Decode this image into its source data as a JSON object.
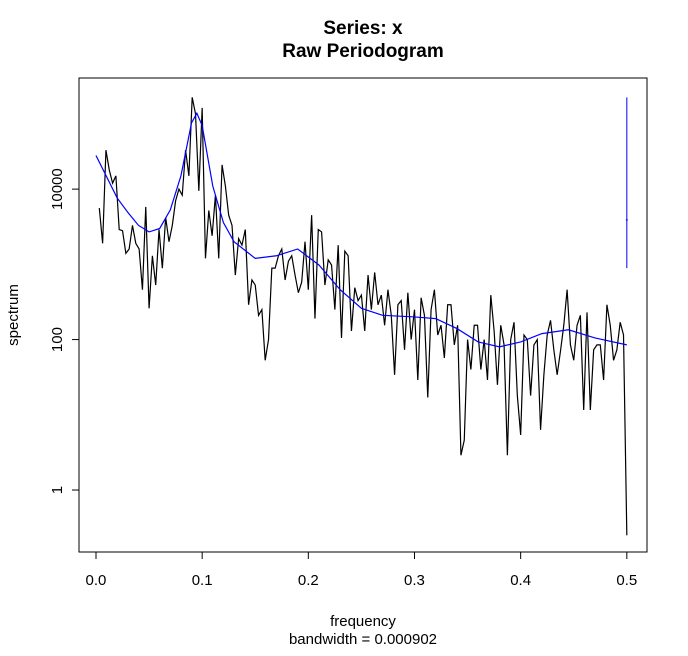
{
  "chart_data": {
    "type": "line",
    "title": "Series: x",
    "subtitle": "Raw Periodogram",
    "x_label": "frequency",
    "x_sublabel": "bandwidth = 0.000902",
    "y_label": "spectrum",
    "log_y": true,
    "grid": false,
    "xlim": [
      -0.016,
      0.519
    ],
    "ylim": [
      0.15,
      300000
    ],
    "xticks": [
      {
        "value": 0,
        "label": "0.0"
      },
      0.1,
      0.2,
      0.3,
      0.4,
      0.5
    ],
    "yticks": [
      1,
      100,
      10000
    ],
    "x": [
      0.003125,
      0.00625,
      0.009375,
      0.0125,
      0.015625,
      0.01875,
      0.021875,
      0.025,
      0.028125,
      0.03125,
      0.034375,
      0.0375,
      0.040625,
      0.04375,
      0.046875,
      0.05,
      0.053125,
      0.05625,
      0.059375,
      0.0625,
      0.065625,
      0.06875,
      0.071875,
      0.075,
      0.078125,
      0.08125,
      0.084375,
      0.0875,
      0.090625,
      0.09375,
      0.096875,
      0.1,
      0.103125,
      0.10625,
      0.109375,
      0.1125,
      0.115625,
      0.11875,
      0.121875,
      0.125,
      0.128125,
      0.13125,
      0.134375,
      0.1375,
      0.140625,
      0.14375,
      0.146875,
      0.15,
      0.153125,
      0.15625,
      0.159375,
      0.1625,
      0.165625,
      0.16875,
      0.171875,
      0.175,
      0.178125,
      0.18125,
      0.184375,
      0.1875,
      0.190625,
      0.19375,
      0.196875,
      0.2,
      0.203125,
      0.20625,
      0.209375,
      0.2125,
      0.215625,
      0.21875,
      0.221875,
      0.225,
      0.228125,
      0.23125,
      0.234375,
      0.2375,
      0.240625,
      0.24375,
      0.246875,
      0.25,
      0.253125,
      0.25625,
      0.259375,
      0.2625,
      0.265625,
      0.26875,
      0.271875,
      0.275,
      0.278125,
      0.28125,
      0.284375,
      0.2875,
      0.290625,
      0.29375,
      0.296875,
      0.3,
      0.303125,
      0.30625,
      0.309375,
      0.3125,
      0.315625,
      0.31875,
      0.321875,
      0.325,
      0.328125,
      0.33125,
      0.334375,
      0.3375,
      0.340625,
      0.34375,
      0.346875,
      0.35,
      0.353125,
      0.35625,
      0.359375,
      0.3625,
      0.365625,
      0.36875,
      0.371875,
      0.375,
      0.378125,
      0.38125,
      0.384375,
      0.3875,
      0.390625,
      0.39375,
      0.396875,
      0.4,
      0.403125,
      0.40625,
      0.409375,
      0.4125,
      0.415625,
      0.41875,
      0.421875,
      0.425,
      0.428125,
      0.43125,
      0.434375,
      0.4375,
      0.440625,
      0.44375,
      0.446875,
      0.45,
      0.453125,
      0.45625,
      0.459375,
      0.4625,
      0.465625,
      0.46875,
      0.471875,
      0.475,
      0.478125,
      0.48125,
      0.484375,
      0.4875,
      0.490625,
      0.49375,
      0.496875,
      0.5
    ],
    "series": [
      {
        "color": "#000000",
        "values": [
          5600,
          1900,
          33000,
          18000,
          12000,
          15000,
          2900,
          2800,
          1400,
          1600,
          3300,
          1900,
          1600,
          460,
          5800,
          260,
          1300,
          530,
          2900,
          890,
          4200,
          2000,
          3300,
          7000,
          10000,
          8300,
          33000,
          15000,
          166000,
          100000,
          9500,
          120000,
          1200,
          5200,
          2400,
          8300,
          1200,
          21000,
          11000,
          4500,
          3300,
          720,
          2200,
          1800,
          2900,
          290,
          620,
          530,
          210,
          250,
          53,
          100,
          890,
          890,
          1300,
          1600,
          620,
          1100,
          1300,
          720,
          420,
          580,
          2000,
          460,
          4500,
          190,
          2900,
          2700,
          530,
          1150,
          980,
          250,
          1800,
          105,
          1500,
          1300,
          130,
          490,
          330,
          390,
          130,
          720,
          250,
          780,
          290,
          390,
          155,
          460,
          210,
          34,
          290,
          330,
          73,
          420,
          100,
          250,
          29,
          360,
          210,
          17,
          250,
          460,
          115,
          155,
          57,
          290,
          290,
          85,
          155,
          2.9,
          4.6,
          100,
          40,
          155,
          155,
          40,
          100,
          29,
          390,
          130,
          25,
          155,
          85,
          2.9,
          100,
          170,
          18,
          5.4,
          115,
          100,
          18,
          85,
          100,
          6.3,
          34,
          115,
          180,
          73,
          34,
          70,
          155,
          460,
          85,
          53,
          155,
          210,
          11.6,
          230,
          11.6,
          73,
          85,
          85,
          29,
          290,
          155,
          53,
          73,
          170,
          115,
          0.25
        ]
      },
      {
        "color": "#0000ff",
        "x": [
          0,
          0.02,
          0.03,
          0.04,
          0.05,
          0.06,
          0.07,
          0.08,
          0.09,
          0.095,
          0.1,
          0.11,
          0.12,
          0.13,
          0.15,
          0.17,
          0.19,
          0.21,
          0.23,
          0.25,
          0.27,
          0.3,
          0.32,
          0.34,
          0.36,
          0.38,
          0.4,
          0.42,
          0.445,
          0.47,
          0.5
        ],
        "values": [
          28000,
          7600,
          4900,
          3300,
          2700,
          3000,
          5300,
          15000,
          76000,
          102000,
          70000,
          11000,
          3600,
          2000,
          1200,
          1300,
          1600,
          980,
          460,
          260,
          210,
          200,
          190,
          140,
          93,
          80,
          93,
          120,
          135,
          105,
          85
        ]
      }
    ],
    "ci_bar": {
      "x": 0.5,
      "lower": 890,
      "center": 3900,
      "upper": 166000,
      "color": "#0000ff"
    }
  }
}
